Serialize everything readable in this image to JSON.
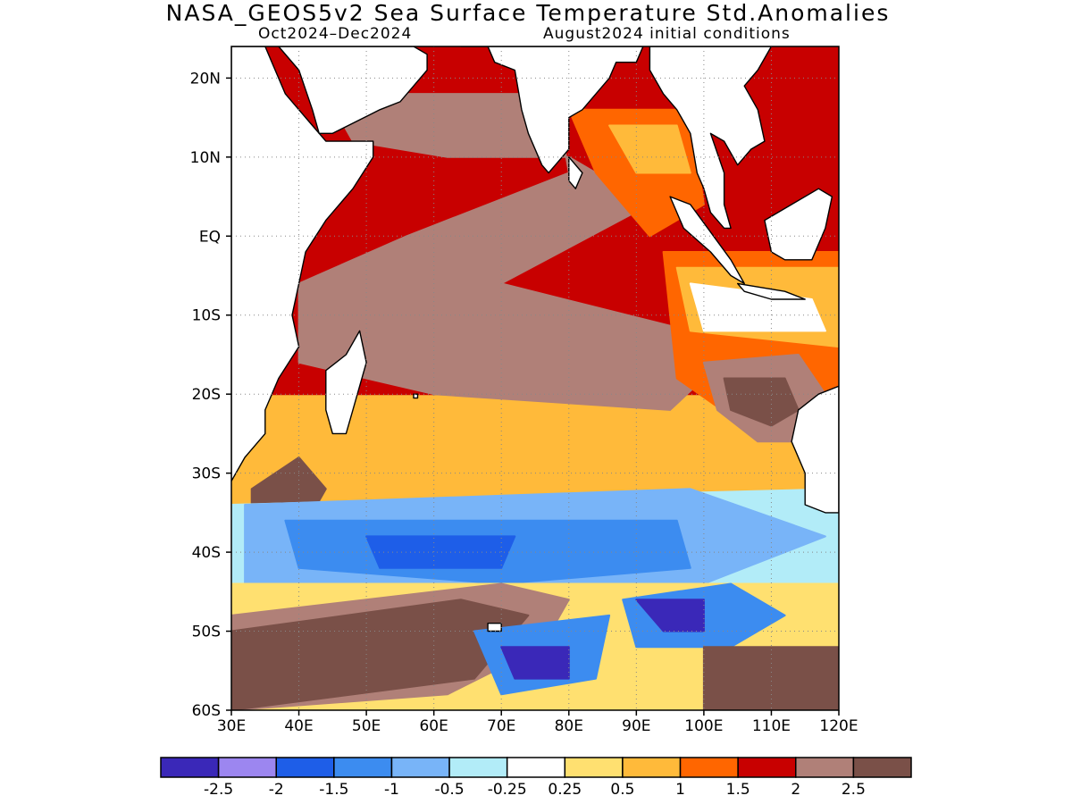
{
  "title": "NASA_GEOS5v2 Sea Surface Temperature Std.Anomalies",
  "subtitle_left": "Oct2024–Dec2024",
  "subtitle_right": "August2024 initial conditions",
  "map": {
    "region": "Indian Ocean",
    "lon_range": [
      30,
      120
    ],
    "lat_range": [
      -60,
      24
    ],
    "lat_ticks": [
      {
        "value": 20,
        "label": "20N"
      },
      {
        "value": 10,
        "label": "10N"
      },
      {
        "value": 0,
        "label": "EQ"
      },
      {
        "value": -10,
        "label": "10S"
      },
      {
        "value": -20,
        "label": "20S"
      },
      {
        "value": -30,
        "label": "30S"
      },
      {
        "value": -40,
        "label": "40S"
      },
      {
        "value": -50,
        "label": "50S"
      },
      {
        "value": -60,
        "label": "60S"
      }
    ],
    "lon_ticks": [
      {
        "value": 30,
        "label": "30E"
      },
      {
        "value": 40,
        "label": "40E"
      },
      {
        "value": 50,
        "label": "50E"
      },
      {
        "value": 60,
        "label": "60E"
      },
      {
        "value": 70,
        "label": "70E"
      },
      {
        "value": 80,
        "label": "80E"
      },
      {
        "value": 90,
        "label": "90E"
      },
      {
        "value": 100,
        "label": "100E"
      },
      {
        "value": 110,
        "label": "110E"
      },
      {
        "value": 120,
        "label": "120E"
      }
    ],
    "grid": "dotted",
    "land_color": "#ffffff",
    "coastline_color": "#000000"
  },
  "colorbar": {
    "colors": [
      "#3a28b8",
      "#9c86f0",
      "#1e5ee8",
      "#3c8cf0",
      "#78b4f8",
      "#b2ecf8",
      "#ffffff",
      "#ffe070",
      "#ffba3a",
      "#ff6600",
      "#c80000",
      "#b08078",
      "#7a5048"
    ],
    "labels": [
      "-2.5",
      "-2",
      "-1.5",
      "-1",
      "-0.5",
      "-0.25",
      "0.25",
      "0.5",
      "1",
      "1.5",
      "2",
      "2.5"
    ]
  },
  "anomaly_regions": [
    {
      "level": "1",
      "color": "#ffba3a",
      "points": [
        [
          30,
          -28
        ],
        [
          120,
          -28
        ],
        [
          120,
          -42
        ],
        [
          30,
          -42
        ]
      ]
    },
    {
      "level": "0.5",
      "color": "#ffe070",
      "points": [
        [
          30,
          -40
        ],
        [
          120,
          -40
        ],
        [
          120,
          -50
        ],
        [
          30,
          -50
        ]
      ]
    },
    {
      "level": "2",
      "color": "#c80000",
      "points": [
        [
          30,
          24
        ],
        [
          120,
          24
        ],
        [
          120,
          -20
        ],
        [
          30,
          -20
        ]
      ]
    },
    {
      "level": "2.5",
      "color": "#b08078",
      "points": [
        [
          44,
          18
        ],
        [
          78,
          18
        ],
        [
          80,
          8
        ],
        [
          56,
          0
        ],
        [
          40,
          -6
        ],
        [
          40,
          -16
        ],
        [
          60,
          -20
        ],
        [
          95,
          -22
        ],
        [
          100,
          -18
        ],
        [
          98,
          -12
        ],
        [
          70,
          -6
        ],
        [
          92,
          4
        ],
        [
          80,
          10
        ],
        [
          62,
          10
        ],
        [
          48,
          12
        ]
      ]
    },
    {
      "level": "1.5",
      "color": "#ff6600",
      "points": [
        [
          80,
          16
        ],
        [
          98,
          16
        ],
        [
          100,
          4
        ],
        [
          92,
          0
        ],
        [
          84,
          8
        ]
      ]
    },
    {
      "level": "1",
      "color": "#ffba3a",
      "points": [
        [
          86,
          14
        ],
        [
          96,
          14
        ],
        [
          98,
          8
        ],
        [
          90,
          8
        ]
      ]
    },
    {
      "level": "1.5",
      "color": "#ff6600",
      "points": [
        [
          94,
          -2
        ],
        [
          120,
          -2
        ],
        [
          120,
          -22
        ],
        [
          106,
          -24
        ],
        [
          96,
          -18
        ]
      ]
    },
    {
      "level": "1",
      "color": "#ffba3a",
      "points": [
        [
          96,
          -4
        ],
        [
          120,
          -4
        ],
        [
          120,
          -14
        ],
        [
          98,
          -12
        ]
      ]
    },
    {
      "level": "0.25",
      "color": "#ffffff",
      "points": [
        [
          98,
          -6
        ],
        [
          116,
          -8
        ],
        [
          118,
          -12
        ],
        [
          100,
          -12
        ]
      ]
    },
    {
      "level": "2.5",
      "color": "#7a5048",
      "points": [
        [
          33,
          -32
        ],
        [
          33,
          -40
        ],
        [
          40,
          -38
        ],
        [
          44,
          -32
        ],
        [
          40,
          -28
        ]
      ]
    },
    {
      "level": "2.5",
      "color": "#b08078",
      "points": [
        [
          100,
          -16
        ],
        [
          114,
          -15
        ],
        [
          118,
          -20
        ],
        [
          116,
          -26
        ],
        [
          108,
          -26
        ],
        [
          102,
          -22
        ]
      ]
    },
    {
      "level": "2.5",
      "color": "#7a5048",
      "points": [
        [
          103,
          -18
        ],
        [
          112,
          -18
        ],
        [
          114,
          -22
        ],
        [
          110,
          -24
        ],
        [
          104,
          -22
        ]
      ]
    },
    {
      "level": "-0.25",
      "color": "#b2ecf8",
      "points": [
        [
          30,
          -34
        ],
        [
          120,
          -32
        ],
        [
          120,
          -44
        ],
        [
          30,
          -46
        ]
      ]
    },
    {
      "level": "-0.5",
      "color": "#78b4f8",
      "points": [
        [
          32,
          -34
        ],
        [
          98,
          -32
        ],
        [
          118,
          -38
        ],
        [
          100,
          -44
        ],
        [
          60,
          -46
        ],
        [
          32,
          -44
        ]
      ]
    },
    {
      "level": "-1",
      "color": "#3c8cf0",
      "points": [
        [
          38,
          -36
        ],
        [
          96,
          -36
        ],
        [
          98,
          -42
        ],
        [
          70,
          -44
        ],
        [
          40,
          -42
        ]
      ]
    },
    {
      "level": "-1.5",
      "color": "#1e5ee8",
      "points": [
        [
          50,
          -38
        ],
        [
          72,
          -38
        ],
        [
          70,
          -42
        ],
        [
          52,
          -42
        ]
      ]
    },
    {
      "level": "0.5",
      "color": "#ffe070",
      "points": [
        [
          30,
          -44
        ],
        [
          120,
          -44
        ],
        [
          120,
          -60
        ],
        [
          30,
          -60
        ]
      ]
    },
    {
      "level": "2.5",
      "color": "#b08078",
      "points": [
        [
          30,
          -48
        ],
        [
          70,
          -44
        ],
        [
          80,
          -46
        ],
        [
          76,
          -52
        ],
        [
          62,
          -58
        ],
        [
          30,
          -60
        ]
      ]
    },
    {
      "level": "2.5",
      "color": "#7a5048",
      "points": [
        [
          30,
          -50
        ],
        [
          64,
          -46
        ],
        [
          74,
          -48
        ],
        [
          66,
          -56
        ],
        [
          30,
          -60
        ]
      ]
    },
    {
      "level": "-1",
      "color": "#3c8cf0",
      "points": [
        [
          66,
          -50
        ],
        [
          86,
          -48
        ],
        [
          84,
          -56
        ],
        [
          70,
          -58
        ]
      ]
    },
    {
      "level": "-2.5",
      "color": "#3a28b8",
      "points": [
        [
          70,
          -52
        ],
        [
          80,
          -52
        ],
        [
          80,
          -56
        ],
        [
          72,
          -56
        ]
      ]
    },
    {
      "level": "-1",
      "color": "#3c8cf0",
      "points": [
        [
          88,
          -46
        ],
        [
          104,
          -44
        ],
        [
          112,
          -48
        ],
        [
          104,
          -52
        ],
        [
          90,
          -52
        ]
      ]
    },
    {
      "level": "-2.5",
      "color": "#3a28b8",
      "points": [
        [
          90,
          -46
        ],
        [
          100,
          -46
        ],
        [
          100,
          -50
        ],
        [
          94,
          -50
        ]
      ]
    },
    {
      "level": "2.5",
      "color": "#7a5048",
      "points": [
        [
          100,
          -52
        ],
        [
          120,
          -52
        ],
        [
          120,
          -60
        ],
        [
          100,
          -60
        ]
      ]
    }
  ],
  "land": [
    {
      "name": "Africa",
      "points": [
        [
          30,
          24
        ],
        [
          35,
          24
        ],
        [
          36,
          22
        ],
        [
          38,
          18
        ],
        [
          42,
          14
        ],
        [
          44,
          12
        ],
        [
          51,
          12
        ],
        [
          51,
          10
        ],
        [
          48,
          6
        ],
        [
          44,
          2
        ],
        [
          41,
          -2
        ],
        [
          40,
          -6
        ],
        [
          39,
          -10
        ],
        [
          40,
          -14
        ],
        [
          37,
          -18
        ],
        [
          35,
          -22
        ],
        [
          35,
          -25
        ],
        [
          32,
          -28
        ],
        [
          30,
          -31
        ]
      ]
    },
    {
      "name": "Arabia",
      "points": [
        [
          37,
          24
        ],
        [
          40,
          21
        ],
        [
          42,
          16
        ],
        [
          43,
          13
        ],
        [
          45,
          13
        ],
        [
          52,
          16
        ],
        [
          55,
          17
        ],
        [
          57,
          19
        ],
        [
          59,
          21
        ],
        [
          59,
          23
        ],
        [
          57,
          24
        ]
      ]
    },
    {
      "name": "India",
      "points": [
        [
          64,
          24
        ],
        [
          68,
          24
        ],
        [
          69,
          22
        ],
        [
          72,
          21
        ],
        [
          73,
          16
        ],
        [
          74,
          13
        ],
        [
          76,
          9
        ],
        [
          77,
          8
        ],
        [
          78,
          9
        ],
        [
          80,
          11
        ],
        [
          80,
          15
        ],
        [
          82,
          16
        ],
        [
          86,
          20
        ],
        [
          87,
          22
        ],
        [
          90,
          22
        ],
        [
          91,
          24
        ]
      ]
    },
    {
      "name": "SE Asia",
      "points": [
        [
          92,
          24
        ],
        [
          92,
          21
        ],
        [
          94,
          18
        ],
        [
          96,
          16
        ],
        [
          98,
          13
        ],
        [
          99,
          8
        ],
        [
          100,
          6
        ],
        [
          101,
          3
        ],
        [
          103,
          1
        ],
        [
          104,
          1
        ],
        [
          103,
          4
        ],
        [
          103,
          8
        ],
        [
          101,
          13
        ],
        [
          103,
          12
        ],
        [
          105,
          9
        ],
        [
          107,
          11
        ],
        [
          109,
          12
        ],
        [
          108,
          16
        ],
        [
          106,
          19
        ],
        [
          108,
          21
        ],
        [
          110,
          24
        ]
      ]
    },
    {
      "name": "Sumatra",
      "points": [
        [
          95,
          5
        ],
        [
          98,
          4
        ],
        [
          104,
          -3
        ],
        [
          106,
          -6
        ],
        [
          104,
          -5
        ],
        [
          101,
          -2
        ],
        [
          97,
          1
        ]
      ]
    },
    {
      "name": "Java",
      "points": [
        [
          105,
          -6
        ],
        [
          112,
          -7
        ],
        [
          115,
          -8
        ],
        [
          110,
          -8
        ],
        [
          106,
          -7
        ]
      ]
    },
    {
      "name": "Borneo",
      "points": [
        [
          109,
          2
        ],
        [
          113,
          4
        ],
        [
          117,
          6
        ],
        [
          119,
          5
        ],
        [
          118,
          1
        ],
        [
          116,
          -3
        ],
        [
          112,
          -3
        ],
        [
          110,
          -2
        ]
      ]
    },
    {
      "name": "Australia",
      "points": [
        [
          114,
          -22
        ],
        [
          117,
          -20
        ],
        [
          120,
          -19
        ],
        [
          120,
          -35
        ],
        [
          118,
          -35
        ],
        [
          115,
          -34
        ],
        [
          115,
          -30
        ],
        [
          113,
          -26
        ]
      ]
    },
    {
      "name": "Madagascar",
      "points": [
        [
          49,
          -12
        ],
        [
          50,
          -16
        ],
        [
          48,
          -22
        ],
        [
          47,
          -25
        ],
        [
          45,
          -25
        ],
        [
          44,
          -22
        ],
        [
          44,
          -17
        ],
        [
          47,
          -15
        ]
      ]
    },
    {
      "name": "Sri Lanka",
      "points": [
        [
          80,
          10
        ],
        [
          82,
          8
        ],
        [
          81,
          6
        ],
        [
          80,
          7
        ]
      ]
    },
    {
      "name": "Kerguelen",
      "points": [
        [
          68,
          -49
        ],
        [
          70,
          -49
        ],
        [
          70,
          -50
        ],
        [
          68,
          -50
        ]
      ]
    },
    {
      "name": "Mauritius",
      "points": [
        [
          57,
          -20
        ],
        [
          57.6,
          -20
        ],
        [
          57.6,
          -20.5
        ],
        [
          57,
          -20.5
        ]
      ]
    }
  ]
}
